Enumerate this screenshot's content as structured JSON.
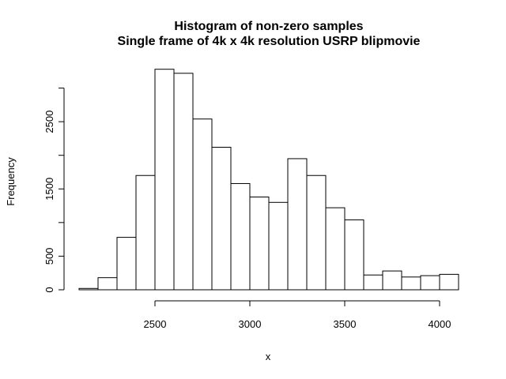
{
  "chart_data": {
    "type": "bar",
    "title": "Histogram of non-zero samples",
    "subtitle": "Single frame of 4k x 4k resolution USRP blipmovie",
    "xlabel": "x",
    "ylabel": "Frequency",
    "bin_edges": [
      2100,
      2200,
      2300,
      2400,
      2500,
      2600,
      2700,
      2800,
      2900,
      3000,
      3100,
      3200,
      3300,
      3400,
      3500,
      3600,
      3700,
      3800,
      3900,
      4000,
      4100
    ],
    "values": [
      20,
      180,
      780,
      1700,
      3280,
      3220,
      2540,
      2120,
      1580,
      1380,
      1300,
      1950,
      1700,
      1220,
      1040,
      220,
      280,
      190,
      210,
      230
    ],
    "xlim": [
      2100,
      4100
    ],
    "ylim": [
      0,
      3300
    ],
    "x_ticks": [
      2500,
      3000,
      3500,
      4000
    ],
    "y_ticks": [
      0,
      500,
      1500,
      2500
    ],
    "grid": false,
    "colors": {
      "bar_fill": "#ffffff",
      "bar_stroke": "#000000"
    }
  }
}
